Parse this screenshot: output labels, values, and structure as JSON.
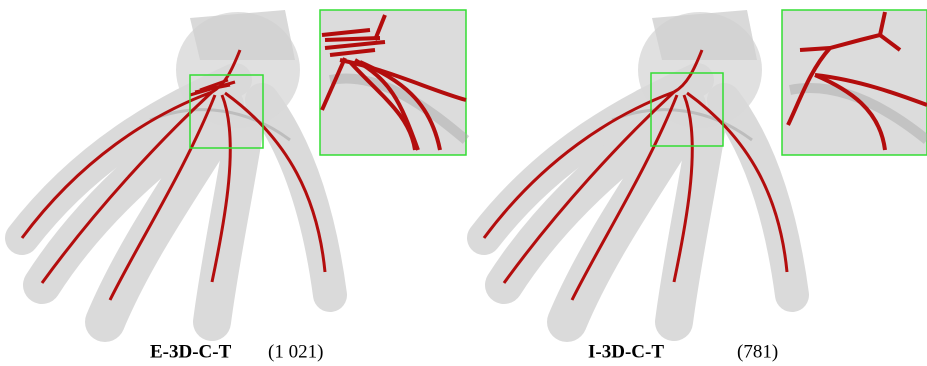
{
  "figure": {
    "panels": [
      {
        "method": "E-3D-C-T",
        "count": "(1 021)"
      },
      {
        "method": "I-3D-C-T",
        "count": "(781)"
      }
    ]
  }
}
